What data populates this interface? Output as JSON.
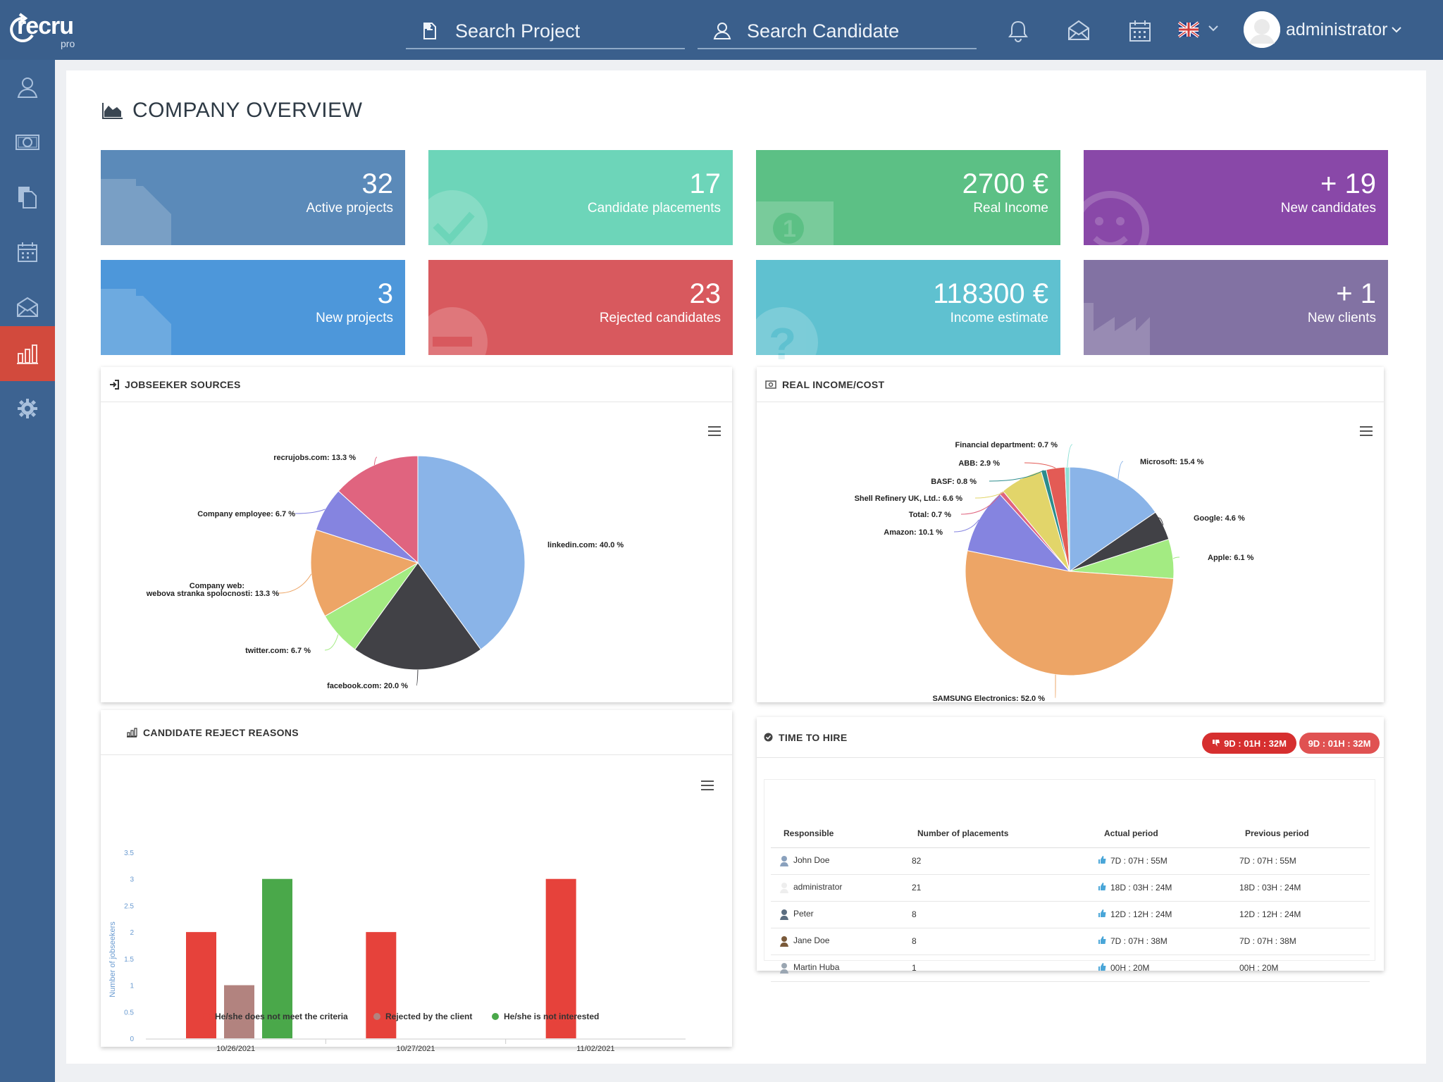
{
  "app": {
    "logo_text": "recru",
    "logo_sub": "pro"
  },
  "header": {
    "search_project": "Search Project",
    "search_candidate": "Search Candidate",
    "user_name": "administrator"
  },
  "page": {
    "title": "COMPANY OVERVIEW"
  },
  "stats": [
    {
      "value": "32",
      "label": "Active projects",
      "color": "#5b8ab9"
    },
    {
      "value": "17",
      "label": "Candidate placements",
      "color": "#6dd5b9"
    },
    {
      "value": "2700 €",
      "label": "Real Income",
      "color": "#5cc085"
    },
    {
      "value": "+ 19",
      "label": "New candidates",
      "color": "#8948a8"
    },
    {
      "value": "3",
      "label": "New projects",
      "color": "#4d97da"
    },
    {
      "value": "23",
      "label": "Rejected candidates",
      "color": "#d8595e"
    },
    {
      "value": "118300 €",
      "label": "Income estimate",
      "color": "#5fc1d0"
    },
    {
      "value": "+ 1",
      "label": "New clients",
      "color": "#8272a3"
    }
  ],
  "panels": {
    "jobseeker_title": "JOBSEEKER SOURCES",
    "income_title": "REAL INCOME/COST",
    "reject_title": "CANDIDATE REJECT REASONS",
    "time_title": "TIME TO HIRE",
    "time_badge_1": "9D : 01H : 32M",
    "time_badge_2": "9D : 01H : 32M"
  },
  "chart_data": [
    {
      "type": "pie",
      "title": "JOBSEEKER SOURCES",
      "categories": [
        "linkedin.com",
        "facebook.com",
        "twitter.com",
        "Company web: webova stranka spolocnosti",
        "Company employee",
        "recrujobs.com"
      ],
      "values": [
        40.0,
        20.0,
        6.7,
        13.3,
        6.7,
        13.3
      ],
      "labels": [
        "linkedin.com: 40.0 %",
        "facebook.com: 20.0 %",
        "twitter.com: 6.7 %",
        "webova stranka spolocnosti: 13.3 %",
        "Company employee: 6.7 %",
        "recrujobs.com: 13.3 %"
      ],
      "label_prefix_extra": "Company web:",
      "colors": [
        "#8ab4e8",
        "#414146",
        "#a3eb82",
        "#eda566",
        "#8584e0",
        "#e0647f"
      ]
    },
    {
      "type": "pie",
      "title": "REAL INCOME/COST",
      "categories": [
        "Microsoft",
        "Google",
        "Apple",
        "SAMSUNG Electronics",
        "Amazon",
        "Total",
        "Shell Refinery UK, Ltd.",
        "BASF",
        "ABB",
        "Financial department"
      ],
      "values": [
        15.4,
        4.6,
        6.1,
        52.0,
        10.1,
        0.7,
        6.6,
        0.8,
        2.9,
        0.7
      ],
      "labels": [
        "Microsoft: 15.4 %",
        "Google: 4.6 %",
        "Apple: 6.1 %",
        "SAMSUNG Electronics: 52.0 %",
        "Amazon: 10.1 %",
        "Total: 0.7 %",
        "Shell Refinery UK, Ltd.: 6.6 %",
        "BASF: 0.8 %",
        "ABB: 2.9 %",
        "Financial department: 0.7 %"
      ],
      "colors": [
        "#8ab4e8",
        "#414146",
        "#a3eb82",
        "#eda566",
        "#8584e0",
        "#e0647f",
        "#e2d56a",
        "#2c8c8c",
        "#e35b55",
        "#8ee0d4"
      ]
    },
    {
      "type": "bar",
      "title": "CANDIDATE REJECT REASONS",
      "categories": [
        "10/26/2021",
        "10/27/2021",
        "11/02/2021"
      ],
      "series": [
        {
          "name": "He/she does not meet the criteria",
          "values": [
            2,
            2,
            3
          ],
          "color": "#e6423b"
        },
        {
          "name": "Rejected by the client",
          "values": [
            1,
            0,
            0
          ],
          "color": "#b2837f"
        },
        {
          "name": "He/she is not interested",
          "values": [
            3,
            0,
            0
          ],
          "color": "#4aa84a"
        }
      ],
      "ylabel": "Number of jobseekers",
      "yticks": [
        "0",
        "0.5",
        "1",
        "1.5",
        "2",
        "2.5",
        "3",
        "3.5"
      ],
      "ylim": [
        0,
        3.5
      ]
    },
    {
      "type": "table",
      "title": "TIME TO HIRE",
      "columns": [
        "Responsible",
        "Number of placements",
        "Actual period",
        "Previous period"
      ],
      "rows": [
        [
          "John Doe",
          "82",
          "7D : 07H : 55M",
          "7D : 07H : 55M"
        ],
        [
          "administrator",
          "21",
          "18D : 03H : 24M",
          "18D : 03H : 24M"
        ],
        [
          "Peter",
          "8",
          "12D : 12H : 24M",
          "12D : 12H : 24M"
        ],
        [
          "Jane Doe",
          "8",
          "7D : 07H : 38M",
          "7D : 07H : 38M"
        ],
        [
          "Martin Huba",
          "1",
          "00H : 20M",
          "00H : 20M"
        ]
      ]
    }
  ]
}
